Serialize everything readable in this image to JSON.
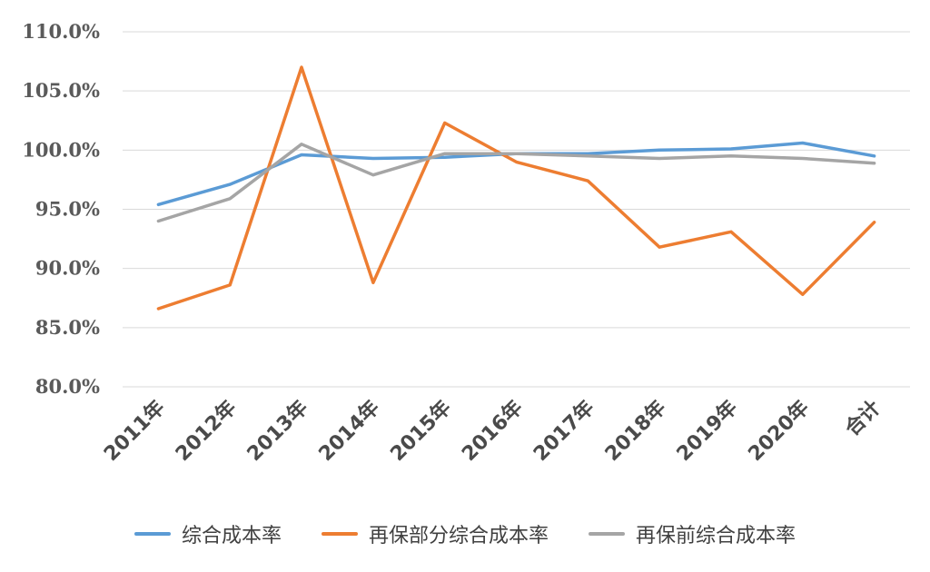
{
  "chart_data": {
    "type": "line",
    "categories": [
      "2011年",
      "2012年",
      "2013年",
      "2014年",
      "2015年",
      "2016年",
      "2017年",
      "2018年",
      "2019年",
      "2020年",
      "合计"
    ],
    "series": [
      {
        "name": "综合成本率",
        "color": "#5b9bd5",
        "values": [
          95.4,
          97.1,
          99.6,
          99.3,
          99.4,
          99.7,
          99.7,
          100.0,
          100.1,
          100.6,
          99.5
        ]
      },
      {
        "name": "再保部分综合成本率",
        "color": "#ed7d31",
        "values": [
          86.6,
          88.6,
          107.0,
          88.8,
          102.3,
          99.0,
          97.4,
          91.8,
          93.1,
          87.8,
          93.9
        ]
      },
      {
        "name": "再保前综合成本率",
        "color": "#a5a5a5",
        "values": [
          94.0,
          95.9,
          100.5,
          97.9,
          99.7,
          99.7,
          99.5,
          99.3,
          99.5,
          99.3,
          98.9
        ]
      }
    ],
    "yticks": [
      "80.0%",
      "85.0%",
      "90.0%",
      "95.0%",
      "100.0%",
      "105.0%",
      "110.0%"
    ],
    "ylim": [
      80,
      110
    ],
    "grid": true,
    "legend_position": "bottom"
  }
}
